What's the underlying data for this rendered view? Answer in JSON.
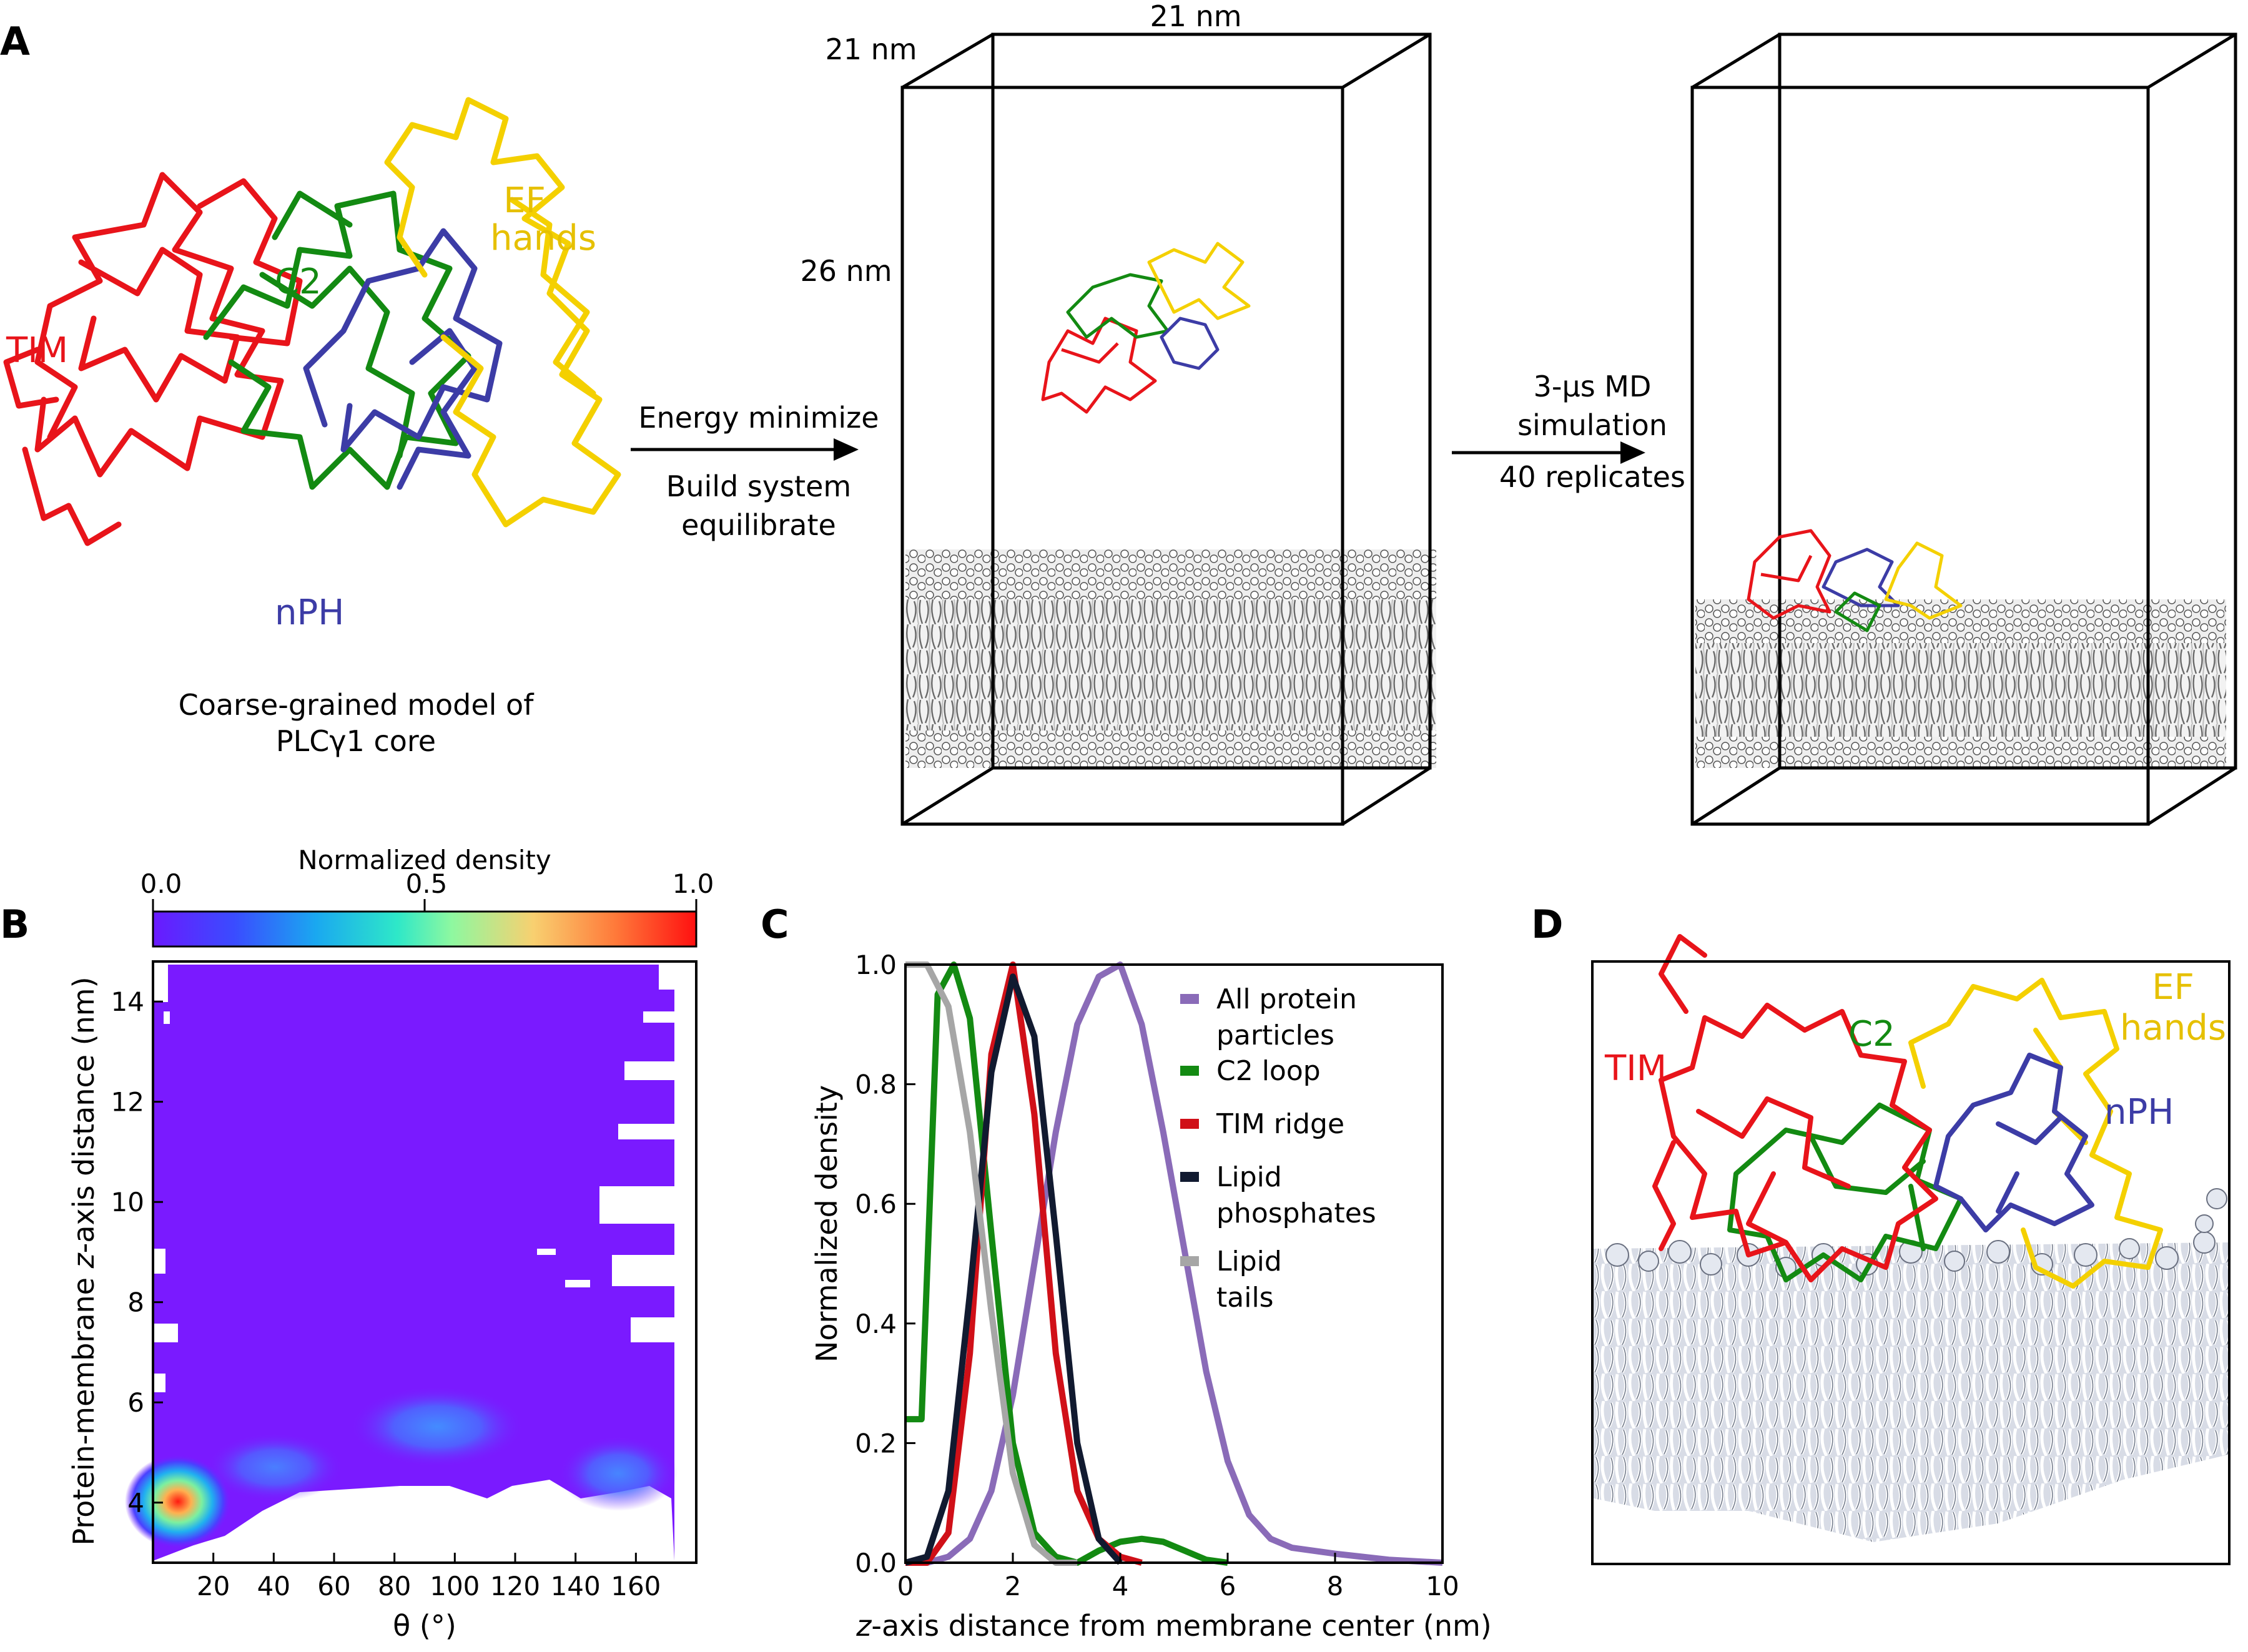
{
  "panels": {
    "A": {
      "letter": "A",
      "labels": {
        "tim": "TIM",
        "c2": "C2",
        "ef1": "EF",
        "ef2": "hands",
        "nph": "nPH",
        "model1": "Coarse-grained model of",
        "model2": "PLCγ1 core"
      },
      "arrow1": {
        "line1": "Energy minimize",
        "line2": "Build system",
        "line3": "equilibrate"
      },
      "box_dims": {
        "width1": "21 nm",
        "width2": "21 nm",
        "height": "26 nm"
      },
      "arrow2": {
        "line1": "3-μs MD",
        "line2": "simulation",
        "line3": "40 replicates"
      },
      "colors": {
        "tim": "#e8141a",
        "c2": "#138a12",
        "ef": "#f4d000",
        "nph": "#3c3ca6"
      }
    },
    "B": {
      "letter": "B",
      "colorbar_title": "Normalized density",
      "colorbar_ticks": [
        "0.0",
        "0.5",
        "1.0"
      ],
      "ylabel_pre": "Protein-membrane ",
      "ylabel_italic": "z",
      "ylabel_post": "-axis distance (nm)",
      "xlabel": "θ (°)",
      "xticks": [
        "20",
        "40",
        "60",
        "80",
        "100",
        "120",
        "140",
        "160"
      ],
      "yticks": [
        "4",
        "6",
        "8",
        "10",
        "12",
        "14"
      ]
    },
    "C": {
      "letter": "C"
    },
    "D": {
      "letter": "D",
      "labels": {
        "tim": "TIM",
        "c2": "C2",
        "ef1": "EF",
        "ef2": "hands",
        "nph": "nPH"
      }
    }
  },
  "chart_data": [
    {
      "panel": "B",
      "type": "heatmap",
      "xlabel": "θ (°)",
      "ylabel": "Protein-membrane z-axis distance (nm)",
      "xlim": [
        0,
        180
      ],
      "ylim": [
        2.8,
        14.8
      ],
      "colorbar": {
        "title": "Normalized density",
        "range": [
          0.0,
          1.0
        ]
      },
      "hotspots": [
        {
          "theta": 8,
          "z": 3.9,
          "density": 1.0
        },
        {
          "theta": 45,
          "z": 4.6,
          "density": 0.2
        },
        {
          "theta": 95,
          "z": 5.3,
          "density": 0.25
        },
        {
          "theta": 150,
          "z": 4.4,
          "density": 0.2
        }
      ]
    },
    {
      "panel": "C",
      "type": "line",
      "xlabel_italic": "z",
      "xlabel": "-axis distance from membrane center (nm)",
      "ylabel": "Normalized density",
      "xlim": [
        0,
        10
      ],
      "ylim": [
        0,
        1.0
      ],
      "xticks": [
        "0",
        "2",
        "4",
        "6",
        "8",
        "10"
      ],
      "yticks": [
        "0.0",
        "0.2",
        "0.4",
        "0.6",
        "0.8",
        "1.0"
      ],
      "legend_position": "top-right",
      "series": [
        {
          "name": "All protein particles",
          "name1": "All protein",
          "name2": "particles",
          "color": "#8a6bb8",
          "x": [
            0,
            0.4,
            0.8,
            1.2,
            1.6,
            2.0,
            2.4,
            2.8,
            3.2,
            3.6,
            4.0,
            4.4,
            4.8,
            5.2,
            5.6,
            6.0,
            6.4,
            6.8,
            7.2,
            8.0,
            9.0,
            10.0
          ],
          "y": [
            0.0,
            0.0,
            0.01,
            0.04,
            0.12,
            0.28,
            0.5,
            0.72,
            0.9,
            0.98,
            1.0,
            0.9,
            0.72,
            0.52,
            0.32,
            0.17,
            0.08,
            0.04,
            0.025,
            0.015,
            0.005,
            0.0
          ]
        },
        {
          "name": "C2 loop",
          "name1": "C2 loop",
          "color": "#138a12",
          "x": [
            0,
            0.3,
            0.6,
            0.9,
            1.2,
            1.6,
            2.0,
            2.4,
            2.8,
            3.2,
            3.6,
            4.0,
            4.4,
            4.8,
            5.2,
            5.6,
            6.0
          ],
          "y": [
            0.24,
            0.24,
            0.95,
            1.0,
            0.91,
            0.55,
            0.2,
            0.05,
            0.01,
            0.0,
            0.02,
            0.035,
            0.04,
            0.035,
            0.02,
            0.005,
            0.0
          ]
        },
        {
          "name": "TIM ridge",
          "name1": "TIM ridge",
          "color": "#d01018",
          "x": [
            0,
            0.4,
            0.8,
            1.2,
            1.6,
            2.0,
            2.4,
            2.8,
            3.2,
            3.6,
            4.0,
            4.4
          ],
          "y": [
            0.0,
            0.0,
            0.05,
            0.35,
            0.85,
            1.0,
            0.75,
            0.35,
            0.12,
            0.04,
            0.01,
            0.0
          ]
        },
        {
          "name": "Lipid phosphates",
          "name1": "Lipid",
          "name2": "phosphates",
          "color": "#111a30",
          "x": [
            0,
            0.4,
            0.8,
            1.2,
            1.6,
            2.0,
            2.4,
            2.8,
            3.2,
            3.6,
            4.0
          ],
          "y": [
            0.0,
            0.01,
            0.12,
            0.45,
            0.82,
            0.98,
            0.88,
            0.55,
            0.2,
            0.04,
            0.0
          ]
        },
        {
          "name": "Lipid tails",
          "name1": "Lipid",
          "name2": "tails",
          "color": "#a6a6a6",
          "x": [
            0,
            0.4,
            0.8,
            1.2,
            1.6,
            2.0,
            2.4,
            2.8,
            3.2
          ],
          "y": [
            1.0,
            1.0,
            0.93,
            0.72,
            0.42,
            0.15,
            0.03,
            0.0,
            0.0
          ]
        }
      ]
    }
  ]
}
